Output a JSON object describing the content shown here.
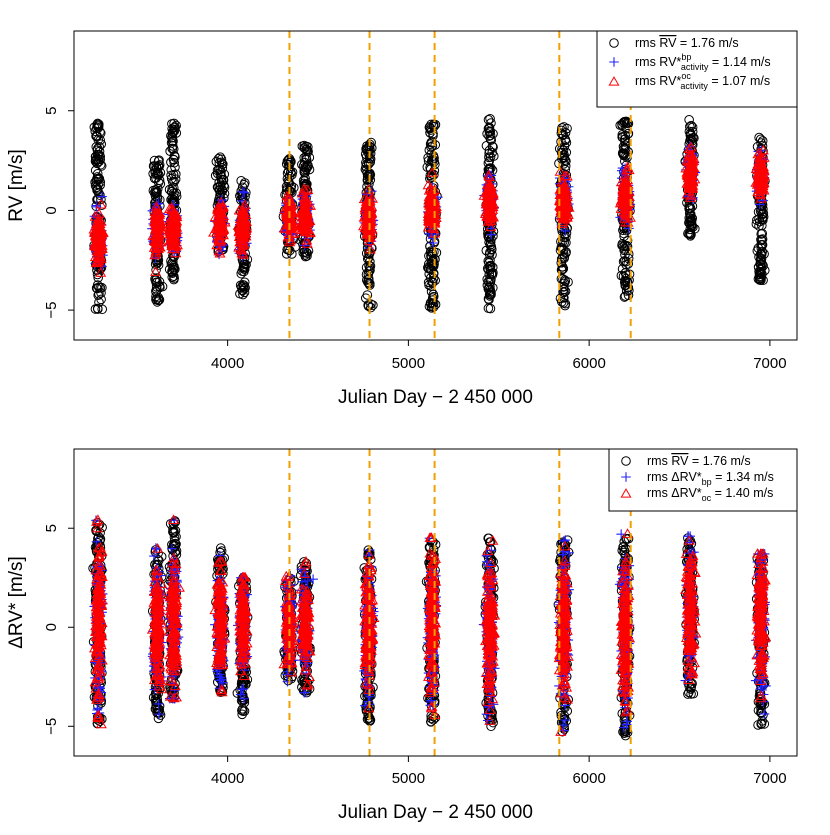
{
  "colors": {
    "observed": "#000000",
    "bp": "#1f1fff",
    "oc": "#ff0000",
    "season_markers": "#f0a000"
  },
  "chart_data": [
    {
      "type": "scatter",
      "panel": "top",
      "xlabel": "Julian Day − 2 450 000",
      "ylabel": "RV [m/s]",
      "xlim": [
        3150,
        7150
      ],
      "ylim": [
        -6.5,
        9
      ],
      "x_ticks": [
        4000,
        5000,
        6000,
        7000
      ],
      "y_ticks": [
        -5,
        0,
        5
      ],
      "grid": false,
      "legend_position": "top-right",
      "vertical_markers": [
        4342,
        4785,
        5145,
        5835,
        6230
      ],
      "legend": [
        {
          "series": "observed",
          "marker": "circle",
          "pre": "rms ",
          "bar": "RV",
          "post": " = 1.76  m/s"
        },
        {
          "series": "bp",
          "marker": "plus",
          "pre": "rms RV*",
          "sup": "bp",
          "sub": "activity",
          "post": " = 1.14  m/s"
        },
        {
          "series": "oc",
          "marker": "triangle",
          "pre": "rms RV*",
          "sup": "oc",
          "sub": "activity",
          "post": " = 1.07 m/s"
        }
      ],
      "clusters": [
        {
          "x": 3285,
          "y_range": [
            -5.0,
            4.4
          ],
          "center": -1.4
        },
        {
          "x": 3610,
          "y_range": [
            -4.6,
            2.6
          ],
          "center": -1.0
        },
        {
          "x": 3700,
          "y_range": [
            -3.6,
            4.4
          ],
          "center": -1.0
        },
        {
          "x": 3960,
          "y_range": [
            -2.2,
            2.7
          ],
          "center": -0.7
        },
        {
          "x": 4085,
          "y_range": [
            -4.4,
            1.5
          ],
          "center": -0.9
        },
        {
          "x": 4340,
          "y_range": [
            -2.2,
            2.6
          ],
          "center": -0.4
        },
        {
          "x": 4430,
          "y_range": [
            -2.4,
            3.3
          ],
          "center": -0.3
        },
        {
          "x": 4780,
          "y_range": [
            -4.9,
            3.6
          ],
          "center": -0.4
        },
        {
          "x": 5130,
          "y_range": [
            -4.9,
            4.4
          ],
          "center": 0.0
        },
        {
          "x": 5450,
          "y_range": [
            -5.0,
            4.6
          ],
          "center": 0.4
        },
        {
          "x": 5860,
          "y_range": [
            -4.8,
            4.4
          ],
          "center": 0.5
        },
        {
          "x": 6200,
          "y_range": [
            -4.4,
            4.5
          ],
          "center": 0.7
        },
        {
          "x": 6560,
          "y_range": [
            -1.3,
            4.6
          ],
          "center": 1.8
        },
        {
          "x": 6950,
          "y_range": [
            -3.7,
            3.8
          ],
          "center": 1.7
        }
      ]
    },
    {
      "type": "scatter",
      "panel": "bottom",
      "xlabel": "Julian Day − 2 450 000",
      "ylabel": "ΔRV* [m/s]",
      "xlim": [
        3150,
        7150
      ],
      "ylim": [
        -6.5,
        9
      ],
      "x_ticks": [
        4000,
        5000,
        6000,
        7000
      ],
      "y_ticks": [
        -5,
        0,
        5
      ],
      "grid": false,
      "legend_position": "top-right",
      "vertical_markers": [
        4342,
        4785,
        5145,
        5835,
        6230
      ],
      "legend": [
        {
          "series": "observed",
          "marker": "circle",
          "pre": "rms ",
          "bar": "RV",
          "post": " = 1.76 m/s"
        },
        {
          "series": "bp",
          "marker": "plus",
          "pre": "rms ΔRV*",
          "sub": "bp",
          "post": " = 1.34  m/s"
        },
        {
          "series": "oc",
          "marker": "triangle",
          "pre": "rms ΔRV*",
          "sub": "oc",
          "post": " = 1.40 m/s"
        }
      ],
      "clusters": [
        {
          "x": 3285,
          "y_range": [
            -5.0,
            5.4
          ],
          "center": 0.0
        },
        {
          "x": 3610,
          "y_range": [
            -4.6,
            4.0
          ],
          "center": 0.0
        },
        {
          "x": 3700,
          "y_range": [
            -3.6,
            5.4
          ],
          "center": 0.0
        },
        {
          "x": 3960,
          "y_range": [
            -3.3,
            4.0
          ],
          "center": 0.0
        },
        {
          "x": 4085,
          "y_range": [
            -4.4,
            2.5
          ],
          "center": 0.0
        },
        {
          "x": 4340,
          "y_range": [
            -2.8,
            2.6
          ],
          "center": 0.0
        },
        {
          "x": 4430,
          "y_range": [
            -3.3,
            3.3
          ],
          "center": 0.0
        },
        {
          "x": 4780,
          "y_range": [
            -4.9,
            3.9
          ],
          "center": 0.0
        },
        {
          "x": 5130,
          "y_range": [
            -4.9,
            4.5
          ],
          "center": 0.0
        },
        {
          "x": 5450,
          "y_range": [
            -5.0,
            4.6
          ],
          "center": 0.0
        },
        {
          "x": 5860,
          "y_range": [
            -5.3,
            4.4
          ],
          "center": 0.0
        },
        {
          "x": 6200,
          "y_range": [
            -5.5,
            4.7
          ],
          "center": 0.0
        },
        {
          "x": 6560,
          "y_range": [
            -3.4,
            4.6
          ],
          "center": 0.8
        },
        {
          "x": 6950,
          "y_range": [
            -5.0,
            3.7
          ],
          "center": 0.5
        }
      ]
    }
  ]
}
